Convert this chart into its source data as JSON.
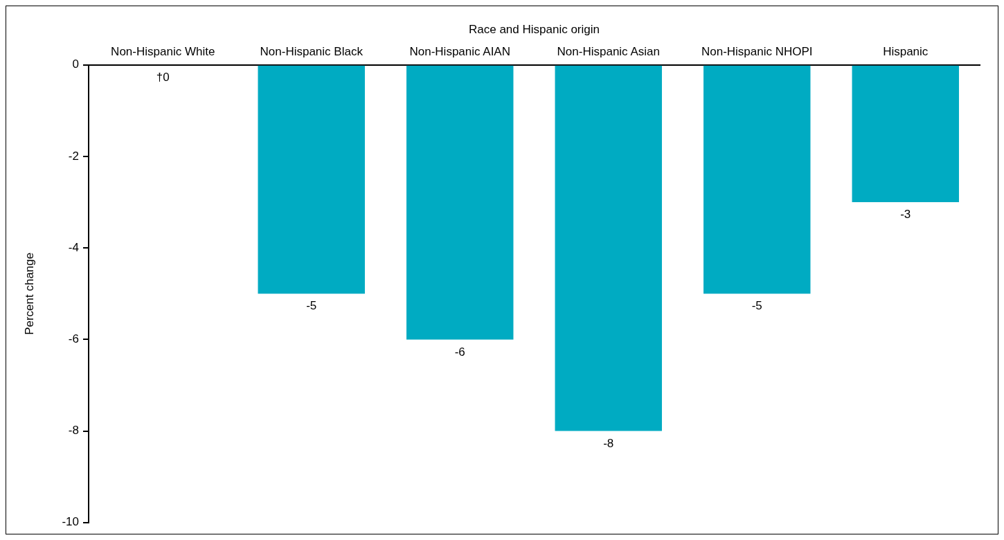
{
  "chart_data": {
    "type": "bar",
    "xlabel": "Race and Hispanic origin",
    "ylabel": "Percent change",
    "categories": [
      "Non-Hispanic White",
      "Non-Hispanic Black",
      "Non-Hispanic AIAN",
      "Non-Hispanic Asian",
      "Non-Hispanic NHOPI",
      "Hispanic"
    ],
    "values": [
      0,
      -5,
      -6,
      -8,
      -5,
      -3
    ],
    "value_labels": [
      "†0",
      "-5",
      "-6",
      "-8",
      "-5",
      "-3"
    ],
    "color": "#00abc2",
    "ylim": [
      -10,
      0
    ],
    "yticks": [
      -10,
      -8,
      -6,
      -4,
      -2,
      0
    ],
    "grid": false,
    "legend": false
  }
}
